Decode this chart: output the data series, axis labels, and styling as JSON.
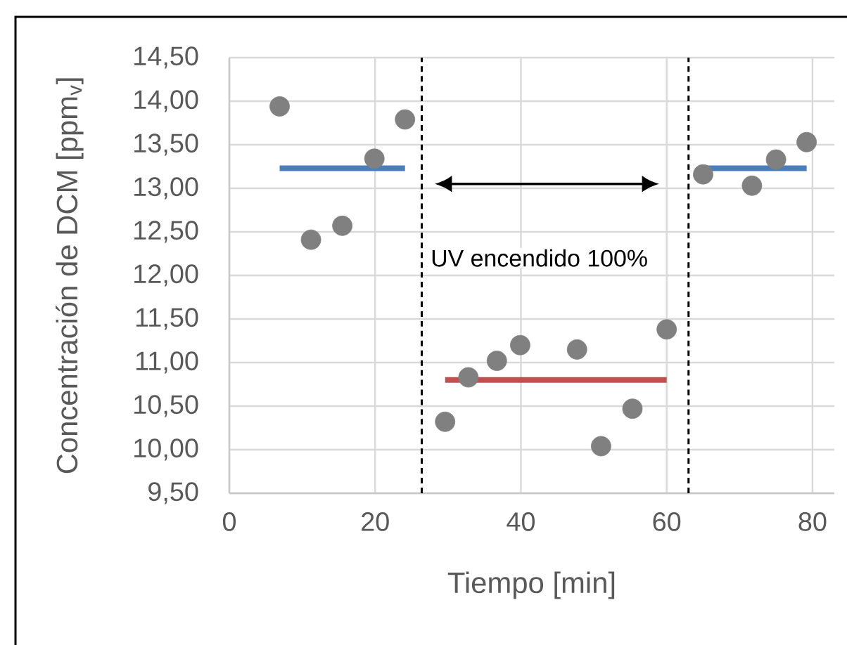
{
  "chart_data": {
    "type": "scatter",
    "xlabel": "Tiempo [min]",
    "ylabel": "Concentración de DCM [ppm$_{v}$]",
    "xlim": [
      0,
      83
    ],
    "ylim": [
      9.5,
      14.5
    ],
    "xticks": [
      0,
      20,
      40,
      60,
      80
    ],
    "yticks": [
      {
        "value": 9.5,
        "label": "9,50"
      },
      {
        "value": 10,
        "label": "10,00"
      },
      {
        "value": 10.5,
        "label": "10,50"
      },
      {
        "value": 11,
        "label": "11,00"
      },
      {
        "value": 11.5,
        "label": "11,50"
      },
      {
        "value": 12,
        "label": "12,00"
      },
      {
        "value": 12.5,
        "label": "12,50"
      },
      {
        "value": 13,
        "label": "13,00"
      },
      {
        "value": 13.5,
        "label": "13,50"
      },
      {
        "value": 14,
        "label": "14,00"
      },
      {
        "value": 14.5,
        "label": "14,50"
      }
    ],
    "grid": true,
    "marker": "circle",
    "series": [
      {
        "color": "#808080",
        "x": [
          6.9,
          11.2,
          15.5,
          19.9,
          24.1,
          29.6,
          32.8,
          36.7,
          39.9,
          47.7,
          51.0,
          55.3,
          60.0,
          65.0,
          71.7,
          75.0,
          79.2
        ],
        "values": [
          13.94,
          12.41,
          12.57,
          13.34,
          13.79,
          10.32,
          10.83,
          11.02,
          11.2,
          11.15,
          10.04,
          10.47,
          11.38,
          13.16,
          13.03,
          13.33,
          13.53
        ]
      },
      {
        "type": "line",
        "marker": "none",
        "color": "#4a7ebb",
        "x": [
          6.9,
          24.1
        ],
        "values": [
          13.23,
          13.23
        ]
      },
      {
        "type": "line",
        "marker": "none",
        "color": "#c0504d",
        "x": [
          29.6,
          60.0
        ],
        "values": [
          10.8,
          10.8
        ]
      },
      {
        "type": "line",
        "marker": "none",
        "color": "#4a7ebb",
        "x": [
          65.0,
          79.2
        ],
        "values": [
          13.23,
          13.23
        ]
      }
    ],
    "ref_lines": [
      {
        "axis": "x",
        "value": 26.4,
        "color": "#000000",
        "line_style": "dashed"
      },
      {
        "axis": "x",
        "value": 63.0,
        "color": "#000000",
        "line_style": "dashed"
      }
    ],
    "annotations": [
      "UV encendido 100%"
    ]
  }
}
